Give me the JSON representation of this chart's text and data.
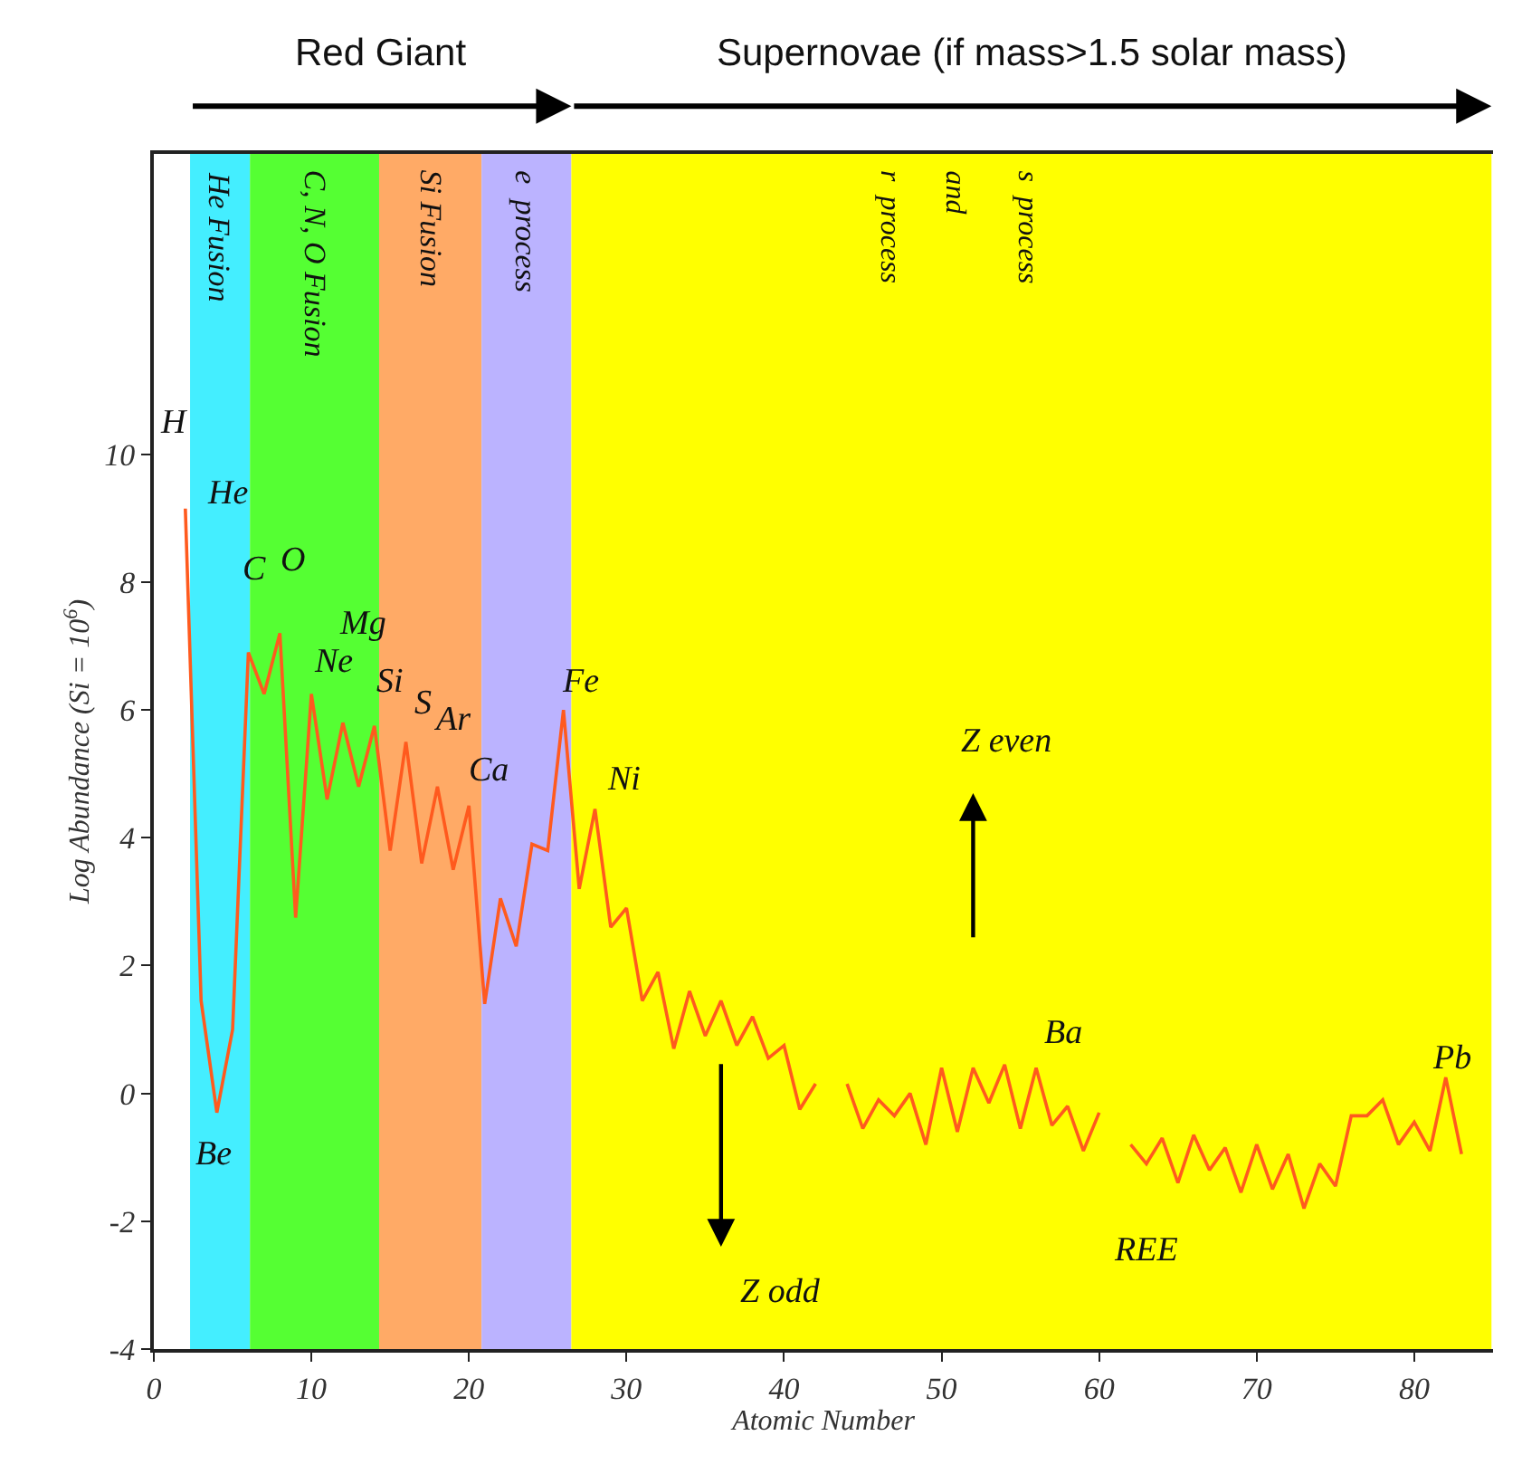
{
  "chart_data": {
    "type": "line",
    "xlabel": "Atomic Number",
    "ylabel": "Log Abundance (Si = 10$^{6}$)",
    "x": [
      2,
      3,
      4,
      5,
      6,
      7,
      8,
      9,
      10,
      11,
      12,
      13,
      14,
      15,
      16,
      17,
      18,
      19,
      20,
      21,
      22,
      23,
      24,
      25,
      26,
      27,
      28,
      29,
      30,
      31,
      32,
      33,
      34,
      35,
      36,
      37,
      38,
      39,
      40,
      41,
      42,
      43,
      44,
      45,
      46,
      47,
      48,
      49,
      50,
      51,
      52,
      53,
      54,
      55,
      56,
      57,
      58,
      59,
      60,
      61,
      62,
      63,
      64,
      65,
      66,
      67,
      68,
      69,
      70,
      71,
      72,
      73,
      74,
      75,
      76,
      77,
      78,
      79,
      80,
      81,
      82,
      83
    ],
    "series": [
      {
        "color": "#ff5a1e",
        "values": [
          9.15,
          1.45,
          -0.3,
          1.0,
          6.9,
          6.25,
          7.2,
          2.75,
          6.25,
          4.6,
          5.8,
          4.8,
          5.75,
          3.8,
          5.5,
          3.6,
          4.8,
          3.5,
          4.5,
          1.4,
          3.05,
          2.3,
          3.9,
          3.8,
          6.0,
          3.2,
          4.45,
          2.6,
          2.9,
          1.45,
          1.9,
          0.7,
          1.6,
          0.9,
          1.45,
          0.75,
          1.2,
          0.55,
          0.75,
          -0.25,
          0.15,
          null,
          0.15,
          -0.55,
          -0.1,
          -0.35,
          0,
          -0.8,
          0.4,
          -0.6,
          0.4,
          -0.15,
          0.45,
          -0.55,
          0.4,
          -0.5,
          -0.2,
          -0.9,
          -0.3,
          null,
          -0.8,
          -1.1,
          -0.7,
          -1.4,
          -0.65,
          -1.2,
          -0.85,
          -1.55,
          -0.8,
          -1.5,
          -0.95,
          -1.8,
          -1.1,
          -1.45,
          -0.35,
          -0.35,
          -0.1,
          -0.8,
          -0.45,
          -0.9,
          0.25,
          -0.95
        ]
      }
    ],
    "xlim": [
      0,
      85
    ],
    "ylim": [
      -4,
      14.7
    ],
    "xticks": [
      0,
      10,
      20,
      30,
      40,
      50,
      60,
      70,
      80
    ],
    "yticks": [
      -4,
      -2,
      0,
      2,
      4,
      6,
      8,
      10
    ],
    "grid": false,
    "legend": false,
    "marker": "none",
    "line_style": "solid",
    "bands": [
      {
        "axis": "x",
        "from": 2.3,
        "to": 6.1,
        "label": "He Fusion",
        "color": "#44eeff"
      },
      {
        "axis": "x",
        "from": 6.1,
        "to": 14.3,
        "label": "C, N, O Fusion",
        "color": "#55ff33"
      },
      {
        "axis": "x",
        "from": 14.3,
        "to": 20.8,
        "label": "Si Fusion",
        "color": "#ffaa66"
      },
      {
        "axis": "x",
        "from": 20.8,
        "to": 26.5,
        "label": "e  process",
        "color": "#bbb3ff"
      },
      {
        "axis": "x",
        "from": 26.5,
        "to": 84.9,
        "color": "#ffff00"
      }
    ],
    "annotations": [
      "H",
      "He",
      "C",
      "O",
      "Ne",
      "Mg",
      "Si",
      "S",
      "Ar",
      "Ca",
      "Be",
      "Fe",
      "Ni",
      "Ba",
      "Pb",
      "Red Giant",
      "Supernovae (if mass>1.5 solar mass)",
      "r  process",
      "and",
      "s  process",
      "Z even",
      "Z odd",
      "REE"
    ]
  }
}
